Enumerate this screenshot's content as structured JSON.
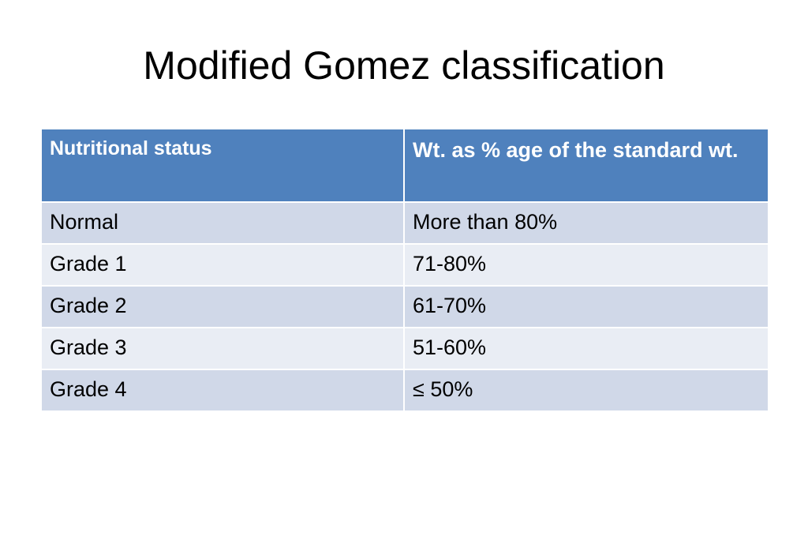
{
  "slide": {
    "title": "Modified Gomez classification"
  },
  "table": {
    "headers": [
      "Nutritional status",
      "Wt. as % age of the standard wt."
    ],
    "rows": [
      [
        "Normal",
        "More than 80%"
      ],
      [
        "Grade 1",
        "71-80%"
      ],
      [
        "Grade 2",
        "61-70%"
      ],
      [
        "Grade 3",
        "51-60%"
      ],
      [
        "Grade 4",
        "≤ 50%"
      ]
    ]
  },
  "colors": {
    "header_bg": "#4f81bd",
    "row_dark": "#d0d8e8",
    "row_light": "#e9edf4"
  }
}
